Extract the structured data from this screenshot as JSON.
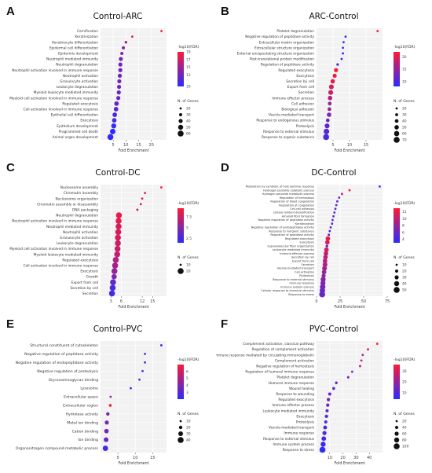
{
  "colors": {
    "low": "#2b2bff",
    "high": "#ff1a33",
    "point_border": "#333333",
    "grid": "#ebebeb",
    "panel_bg": "#f2f2f2"
  },
  "chart_data": [
    {
      "panel": "A",
      "title": "Control-ARC",
      "type": "scatter",
      "xlabel": "Fold Enrichment",
      "xlim": [
        0,
        26
      ],
      "xticks": [
        5,
        10,
        15,
        20
      ],
      "color_legend": {
        "title": "-log10(FDR)",
        "ticks": [
          10,
          13,
          15,
          17,
          19
        ],
        "min": 10,
        "max": 19
      },
      "size_legend": {
        "title": "N. of Genes",
        "ticks": [
          20,
          30,
          40,
          50,
          60
        ]
      },
      "terms": [
        "Cornification",
        "Keratinization",
        "Keratinocyte differentiation",
        "Epidermal cell differentiation",
        "Epidermis development",
        "Neutrophil mediated immunity",
        "Neutrophil degranulation",
        "Neutrophil activation involved in immune response",
        "Neutrophil activation",
        "Granulocyte activation",
        "Leukocyte degranulation",
        "Myeloid leukocyte mediated immunity",
        "Myeloid cell activation involved in immune response",
        "Regulated exocytosis",
        "Cell activation involved in immune response",
        "Epithelial cell differentiation",
        "Exocytosis",
        "Epithelium development",
        "Programmed cell death",
        "Animal organ development"
      ],
      "x": [
        24,
        12.5,
        10.0,
        9.0,
        8.4,
        8.0,
        7.8,
        7.8,
        7.6,
        7.4,
        7.3,
        7.2,
        7.0,
        6.3,
        6.1,
        5.6,
        5.4,
        5.2,
        4.8,
        3.9
      ],
      "fdr": [
        19,
        17,
        15.5,
        14,
        13.5,
        13,
        13,
        13,
        13,
        13,
        13,
        12.5,
        12.5,
        12,
        12,
        11,
        11,
        10.5,
        10,
        10
      ],
      "genes": [
        15,
        20,
        25,
        30,
        30,
        40,
        40,
        40,
        40,
        40,
        40,
        40,
        40,
        45,
        45,
        45,
        45,
        50,
        55,
        60
      ]
    },
    {
      "panel": "B",
      "title": "ARC-Control",
      "type": "scatter",
      "xlabel": "Fold Enrichment",
      "xlim": [
        0,
        20
      ],
      "xticks": [
        5,
        10,
        15
      ],
      "color_legend": {
        "title": "-log10(FDR)",
        "ticks": [
          10,
          15,
          20
        ],
        "min": 8,
        "max": 22
      },
      "size_legend": {
        "title": "N. of Genes",
        "ticks": [
          20,
          30,
          40,
          50,
          60,
          70
        ]
      },
      "terms": [
        "Platelet degranulation",
        "Negative regulation of peptidase activity",
        "Extracellular matrix organization",
        "Extracellular structure organization",
        "External encapsulating structure organization",
        "Post-translational protein modification",
        "Regulation of peptidase activity",
        "Regulated exocytosis",
        "Exocytosis",
        "Secretion by cell",
        "Export from cell",
        "Secretion",
        "Immune effector process",
        "Cell adhesion",
        "Biological adhesion",
        "Vesicle-mediated transport",
        "Response to endogenous stimulus",
        "Proteolysis",
        "Response to external stimulus",
        "Response to organic substance"
      ],
      "x": [
        18.5,
        8.8,
        8.2,
        8.0,
        8.0,
        7.6,
        6.4,
        5.9,
        5.5,
        4.9,
        4.5,
        4.3,
        4.1,
        4.0,
        3.9,
        3.8,
        3.4,
        3.2,
        3.0,
        2.9
      ],
      "fdr": [
        22,
        8,
        9,
        9.5,
        9.5,
        8,
        10,
        22,
        21,
        20,
        19,
        19,
        17,
        15,
        15,
        14,
        12,
        11,
        11,
        10
      ],
      "genes": [
        15,
        15,
        20,
        20,
        20,
        20,
        25,
        45,
        45,
        50,
        55,
        55,
        50,
        40,
        40,
        50,
        40,
        55,
        65,
        70
      ]
    },
    {
      "panel": "C",
      "title": "Control-DC",
      "type": "scatter",
      "xlabel": "Fold Enrichment",
      "xlim": [
        0,
        19
      ],
      "xticks": [
        3,
        6,
        12,
        15
      ],
      "color_legend": {
        "title": "-log10(FDR)",
        "ticks": [
          2.5,
          5.0,
          7.5
        ],
        "min": 1.5,
        "max": 9.5
      },
      "size_legend": {
        "title": "N. of Genes",
        "ticks": [
          10,
          20
        ]
      },
      "terms": [
        "Nucleosome assembly",
        "Chromatin assembly",
        "Nucleosome organization",
        "Chromatin assembly or disassembly",
        "DNA packaging",
        "Neutrophil degranulation",
        "Neutrophil activation involved in immune response",
        "Neutrophil mediated immunity",
        "Neutrophil activation",
        "Granulocyte activation",
        "Leukocyte degranulation",
        "Myeloid cell activation involved in immune response",
        "Myeloid leukocyte mediated immunity",
        "Regulated exocytosis",
        "Cell activation involved in immune response",
        "Exocytosis",
        "Growth",
        "Export from cell",
        "Secretion by cell",
        "Secretion"
      ],
      "x": [
        17.5,
        12.8,
        12.0,
        11.6,
        10.6,
        5.3,
        5.2,
        5.2,
        5.1,
        5.0,
        5.0,
        4.9,
        4.8,
        4.4,
        4.2,
        4.0,
        3.9,
        3.6,
        3.5,
        3.3
      ],
      "fdr": [
        9.5,
        8.5,
        8.0,
        7.5,
        7.0,
        8.5,
        8.5,
        8.0,
        8.0,
        8.0,
        7.5,
        7.5,
        7.0,
        6.5,
        6.0,
        5.5,
        4.5,
        3.5,
        3.0,
        2.5
      ],
      "genes": [
        8,
        8,
        8,
        8,
        8,
        20,
        20,
        20,
        20,
        20,
        20,
        20,
        20,
        22,
        20,
        22,
        18,
        22,
        20,
        20
      ]
    },
    {
      "panel": "D",
      "title": "DC-Control",
      "type": "scatter",
      "xlabel": "Fold Enrichment",
      "xlim": [
        0,
        70
      ],
      "xticks": [
        0,
        25,
        50,
        75
      ],
      "color_legend": {
        "title": "-log10(FDR)",
        "ticks": [
          4,
          6,
          8,
          10,
          12
        ],
        "min": 3,
        "max": 13
      },
      "size_legend": {
        "title": "N. of Genes",
        "ticks": [
          10,
          20,
          30,
          40,
          50
        ]
      },
      "terms": [
        "Modulation by symbiont of host defense response",
        "Hydrogen peroxide catabolic process",
        "Hydrogen peroxide metabolic process",
        "Regulation of hemostasis",
        "Regulation of blood coagulation",
        "Regulation of coagulation",
        "Cell-cell adhesion",
        "Cellular oxidant detoxification",
        "Amyloid fibril formation",
        "Negative regulation of peptidase activity",
        "Keratinization",
        "Negative regulation of endopeptidase activity",
        "Response to inorganic substance",
        "Regulation of peptidase activity",
        "Regulated exocytosis",
        "Exocytosis",
        "Supramolecular fiber organization",
        "Leukocyte mediated immunity",
        "Immune effector process",
        "Secretion by cell",
        "Export from cell",
        "Secretion",
        "Vesicle-mediated transport",
        "Cell activation",
        "Proteolysis",
        "Response to external stimulus",
        "Immune response",
        "Immune system process",
        "Cellular response to chemical stimulus",
        "Response to stress"
      ],
      "x": [
        67,
        35,
        27,
        24,
        22,
        21,
        20,
        19,
        18,
        17,
        16.5,
        15,
        14,
        13,
        12,
        11.5,
        11,
        10.5,
        10,
        9.5,
        9,
        9,
        8.5,
        8,
        7.5,
        7,
        6.8,
        6.5,
        6.2,
        6
      ],
      "fdr": [
        4,
        12.5,
        11,
        6,
        5.5,
        5.5,
        5,
        5,
        5,
        5,
        5,
        5,
        4.5,
        4.5,
        12,
        11.5,
        5,
        11,
        10,
        10,
        9.5,
        9.5,
        8.5,
        8,
        7,
        7.5,
        7,
        6.5,
        6,
        6
      ],
      "genes": [
        5,
        10,
        10,
        8,
        8,
        8,
        8,
        8,
        8,
        10,
        8,
        10,
        10,
        12,
        35,
        35,
        15,
        35,
        35,
        35,
        35,
        38,
        38,
        35,
        30,
        40,
        40,
        45,
        45,
        50
      ]
    },
    {
      "panel": "E",
      "title": "Control-PVC",
      "type": "scatter",
      "xlabel": "Fold Enrichment",
      "xlim": [
        0,
        19
      ],
      "xticks": [
        5,
        10,
        15
      ],
      "color_legend": {
        "title": "-log10(FDR)",
        "ticks": [
          3,
          4,
          5,
          6
        ],
        "min": 2,
        "max": 7
      },
      "size_legend": {
        "title": "N. of Genes",
        "ticks": [
          10,
          20,
          30,
          40
        ]
      },
      "terms": [
        "Structural constituent of cytoskeleton",
        "Negative regulation of peptidase activity",
        "Negative regulation of endopeptidase activity",
        "Negative regulation of proteolysis",
        "Glycosaminoglycan binding",
        "Lysosome",
        "Extracellular space",
        "Extracellular region",
        "Hydrolase activity",
        "Metal ion binding",
        "Cation binding",
        "Ion binding",
        "Organonitrogen compound metabolic process"
      ],
      "x": [
        17.5,
        12.8,
        12.8,
        12.1,
        11.2,
        8.7,
        2.9,
        2.8,
        2.1,
        1.8,
        1.7,
        1.6,
        1.4
      ],
      "fdr": [
        2.3,
        2.8,
        2.8,
        2.6,
        2.6,
        2.8,
        4.5,
        6.8,
        4.0,
        3.8,
        3.8,
        3.5,
        2.5
      ],
      "genes": [
        8,
        8,
        8,
        8,
        8,
        8,
        10,
        15,
        20,
        25,
        28,
        30,
        35
      ]
    },
    {
      "panel": "F",
      "title": "PVC-Control",
      "type": "scatter",
      "xlabel": "Fold Enrichment",
      "xlim": [
        0,
        50
      ],
      "xticks": [
        10,
        20,
        30,
        40
      ],
      "color_legend": {
        "title": "-log10(FDR)",
        "ticks": [
          10,
          20,
          30
        ],
        "min": 4,
        "max": 36
      },
      "size_legend": {
        "title": "N. of Genes",
        "ticks": [
          20,
          40,
          60,
          80,
          100
        ]
      },
      "terms": [
        "Complement activation, classical pathway",
        "Regulation of complement activation",
        "Humoral immune response mediated by circulating immunoglobulin",
        "Complement activation",
        "Negative regulation of hemostasis",
        "Regulation of humoral immune response",
        "Platelet degranulation",
        "Humoral immune response",
        "Wound healing",
        "Response to wounding",
        "Regulated exocytosis",
        "Immune effector process",
        "Leukocyte mediated immunity",
        "Exocytosis",
        "Proteolysis",
        "Vesicle-mediated transport",
        "Immune response",
        "Response to external stimulus",
        "Immune system process",
        "Response to stress"
      ],
      "x": [
        46,
        39,
        35,
        34,
        33,
        27,
        24,
        15,
        13,
        10,
        9,
        8.5,
        8,
        7.5,
        7,
        6.5,
        6,
        5.5,
        5,
        4.5
      ],
      "fdr": [
        36,
        25,
        20,
        28,
        24,
        15,
        17,
        14,
        12,
        11,
        16,
        14,
        12,
        12,
        10,
        9,
        9,
        7,
        6,
        5
      ],
      "genes": [
        15,
        15,
        15,
        20,
        15,
        20,
        25,
        30,
        35,
        40,
        45,
        45,
        40,
        45,
        40,
        55,
        60,
        70,
        80,
        100
      ]
    }
  ]
}
